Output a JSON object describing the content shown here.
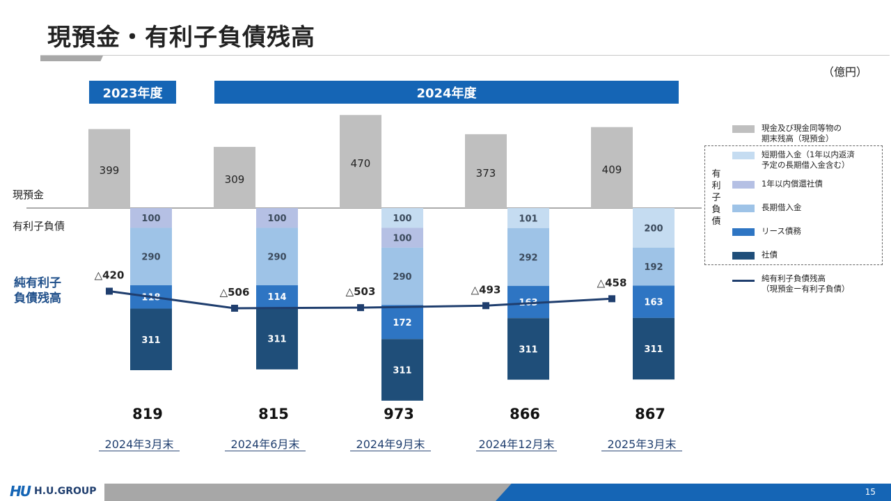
{
  "title": "現預金・有利子負債残高",
  "unit": "（億円）",
  "year_bands": [
    "2023年度",
    "2024年度"
  ],
  "row_labels": {
    "cash": "現預金",
    "debt": "有利子負債",
    "net": "純有利子\n負債残高"
  },
  "legend": {
    "group_label": "有利子負債",
    "items": [
      {
        "label": "現金及び現金同等物の\n期末残高（現預金）",
        "color": "#bfbfbf"
      },
      {
        "label": "短期借入金（1年以内返済\n予定の長期借入金含む）",
        "color": "#c5dcf1"
      },
      {
        "label": "1年以内償還社債",
        "color": "#b5c0e4"
      },
      {
        "label": "長期借入金",
        "color": "#9ec3e7"
      },
      {
        "label": "リース債務",
        "color": "#2e75c3"
      },
      {
        "label": "社債",
        "color": "#1f4e79"
      }
    ],
    "line_label": "純有利子負債残高\n（現預金ー有利子負債）",
    "line_color": "#1f3e6e"
  },
  "chart_data": {
    "type": "bar",
    "stacking": "diverging",
    "categories": [
      "2024年3月末",
      "2024年6月末",
      "2024年9月末",
      "2024年12月末",
      "2025年3月末"
    ],
    "cash": [
      399,
      309,
      470,
      373,
      409
    ],
    "debt_series": [
      {
        "name": "短期借入金（1年以内返済予定の長期借入金含む）",
        "values": [
          0,
          0,
          100,
          101,
          200
        ],
        "color": "#c5dcf1"
      },
      {
        "name": "1年以内償還社債",
        "values": [
          100,
          100,
          100,
          0,
          0
        ],
        "color": "#b5c0e4"
      },
      {
        "name": "長期借入金",
        "values": [
          290,
          290,
          290,
          292,
          192
        ],
        "color": "#9ec3e7"
      },
      {
        "name": "リース債務",
        "values": [
          118,
          114,
          172,
          163,
          163
        ],
        "color": "#2e75c3"
      },
      {
        "name": "社債",
        "values": [
          311,
          311,
          311,
          311,
          311
        ],
        "color": "#1f4e79"
      }
    ],
    "debt_totals": [
      "819",
      "815",
      "973",
      "866",
      "867"
    ],
    "net_debt": [
      -420,
      -506,
      -503,
      -493,
      -458
    ],
    "net_debt_labels": [
      "△420",
      "△506",
      "△503",
      "△493",
      "△458"
    ]
  },
  "footer": {
    "logo_mark": "HU",
    "logo_text": "H.U.GROUP",
    "page": "15"
  }
}
